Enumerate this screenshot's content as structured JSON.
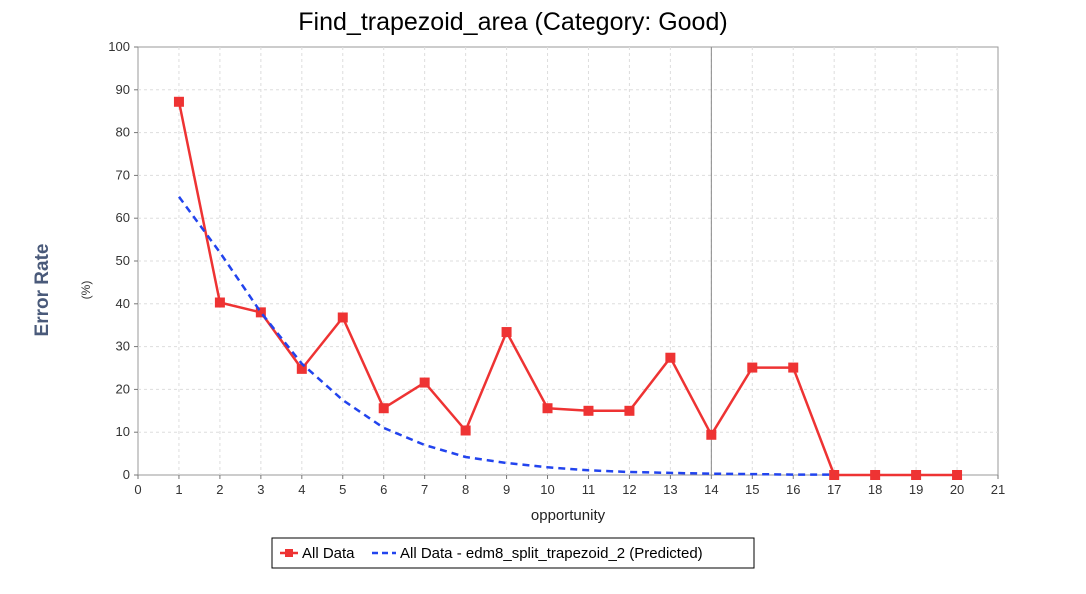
{
  "chart_data": {
    "type": "line",
    "title": "Find_trapezoid_area (Category: Good)",
    "xlabel": "opportunity",
    "ylabel": "Error Rate",
    "ylabel_unit": "(%)",
    "xlim": [
      0,
      21
    ],
    "ylim": [
      0,
      100
    ],
    "x_ticks": [
      0,
      1,
      2,
      3,
      4,
      5,
      6,
      7,
      8,
      9,
      10,
      11,
      12,
      13,
      14,
      15,
      16,
      17,
      18,
      19,
      20,
      21
    ],
    "y_ticks": [
      0,
      10,
      20,
      30,
      40,
      50,
      60,
      70,
      80,
      90,
      100
    ],
    "grid": true,
    "marker_line_x": 14,
    "legend_position": "bottom-center",
    "series": [
      {
        "name": "All Data",
        "color": "#ee3333",
        "style": "solid",
        "marker": "square",
        "x": [
          1,
          2,
          3,
          4,
          5,
          6,
          7,
          8,
          9,
          10,
          11,
          12,
          13,
          14,
          15,
          16,
          17,
          18,
          19,
          20
        ],
        "values": [
          87.2,
          40.3,
          38.0,
          24.8,
          36.8,
          15.6,
          21.6,
          10.4,
          33.4,
          15.6,
          15.0,
          15.0,
          27.4,
          9.4,
          25.1,
          25.1,
          0,
          0,
          0,
          0
        ]
      },
      {
        "name": "All Data - edm8_split_trapezoid_2 (Predicted)",
        "color": "#2244ee",
        "style": "dashed",
        "marker": "none",
        "x": [
          1,
          2,
          3,
          4,
          5,
          6,
          7,
          8,
          9,
          10,
          11,
          12,
          13,
          14,
          15,
          16,
          17
        ],
        "values": [
          65.0,
          52.0,
          38.0,
          26.0,
          17.5,
          11.0,
          7.0,
          4.2,
          2.8,
          1.8,
          1.1,
          0.7,
          0.5,
          0.3,
          0.2,
          0.1,
          0.1
        ]
      }
    ]
  }
}
